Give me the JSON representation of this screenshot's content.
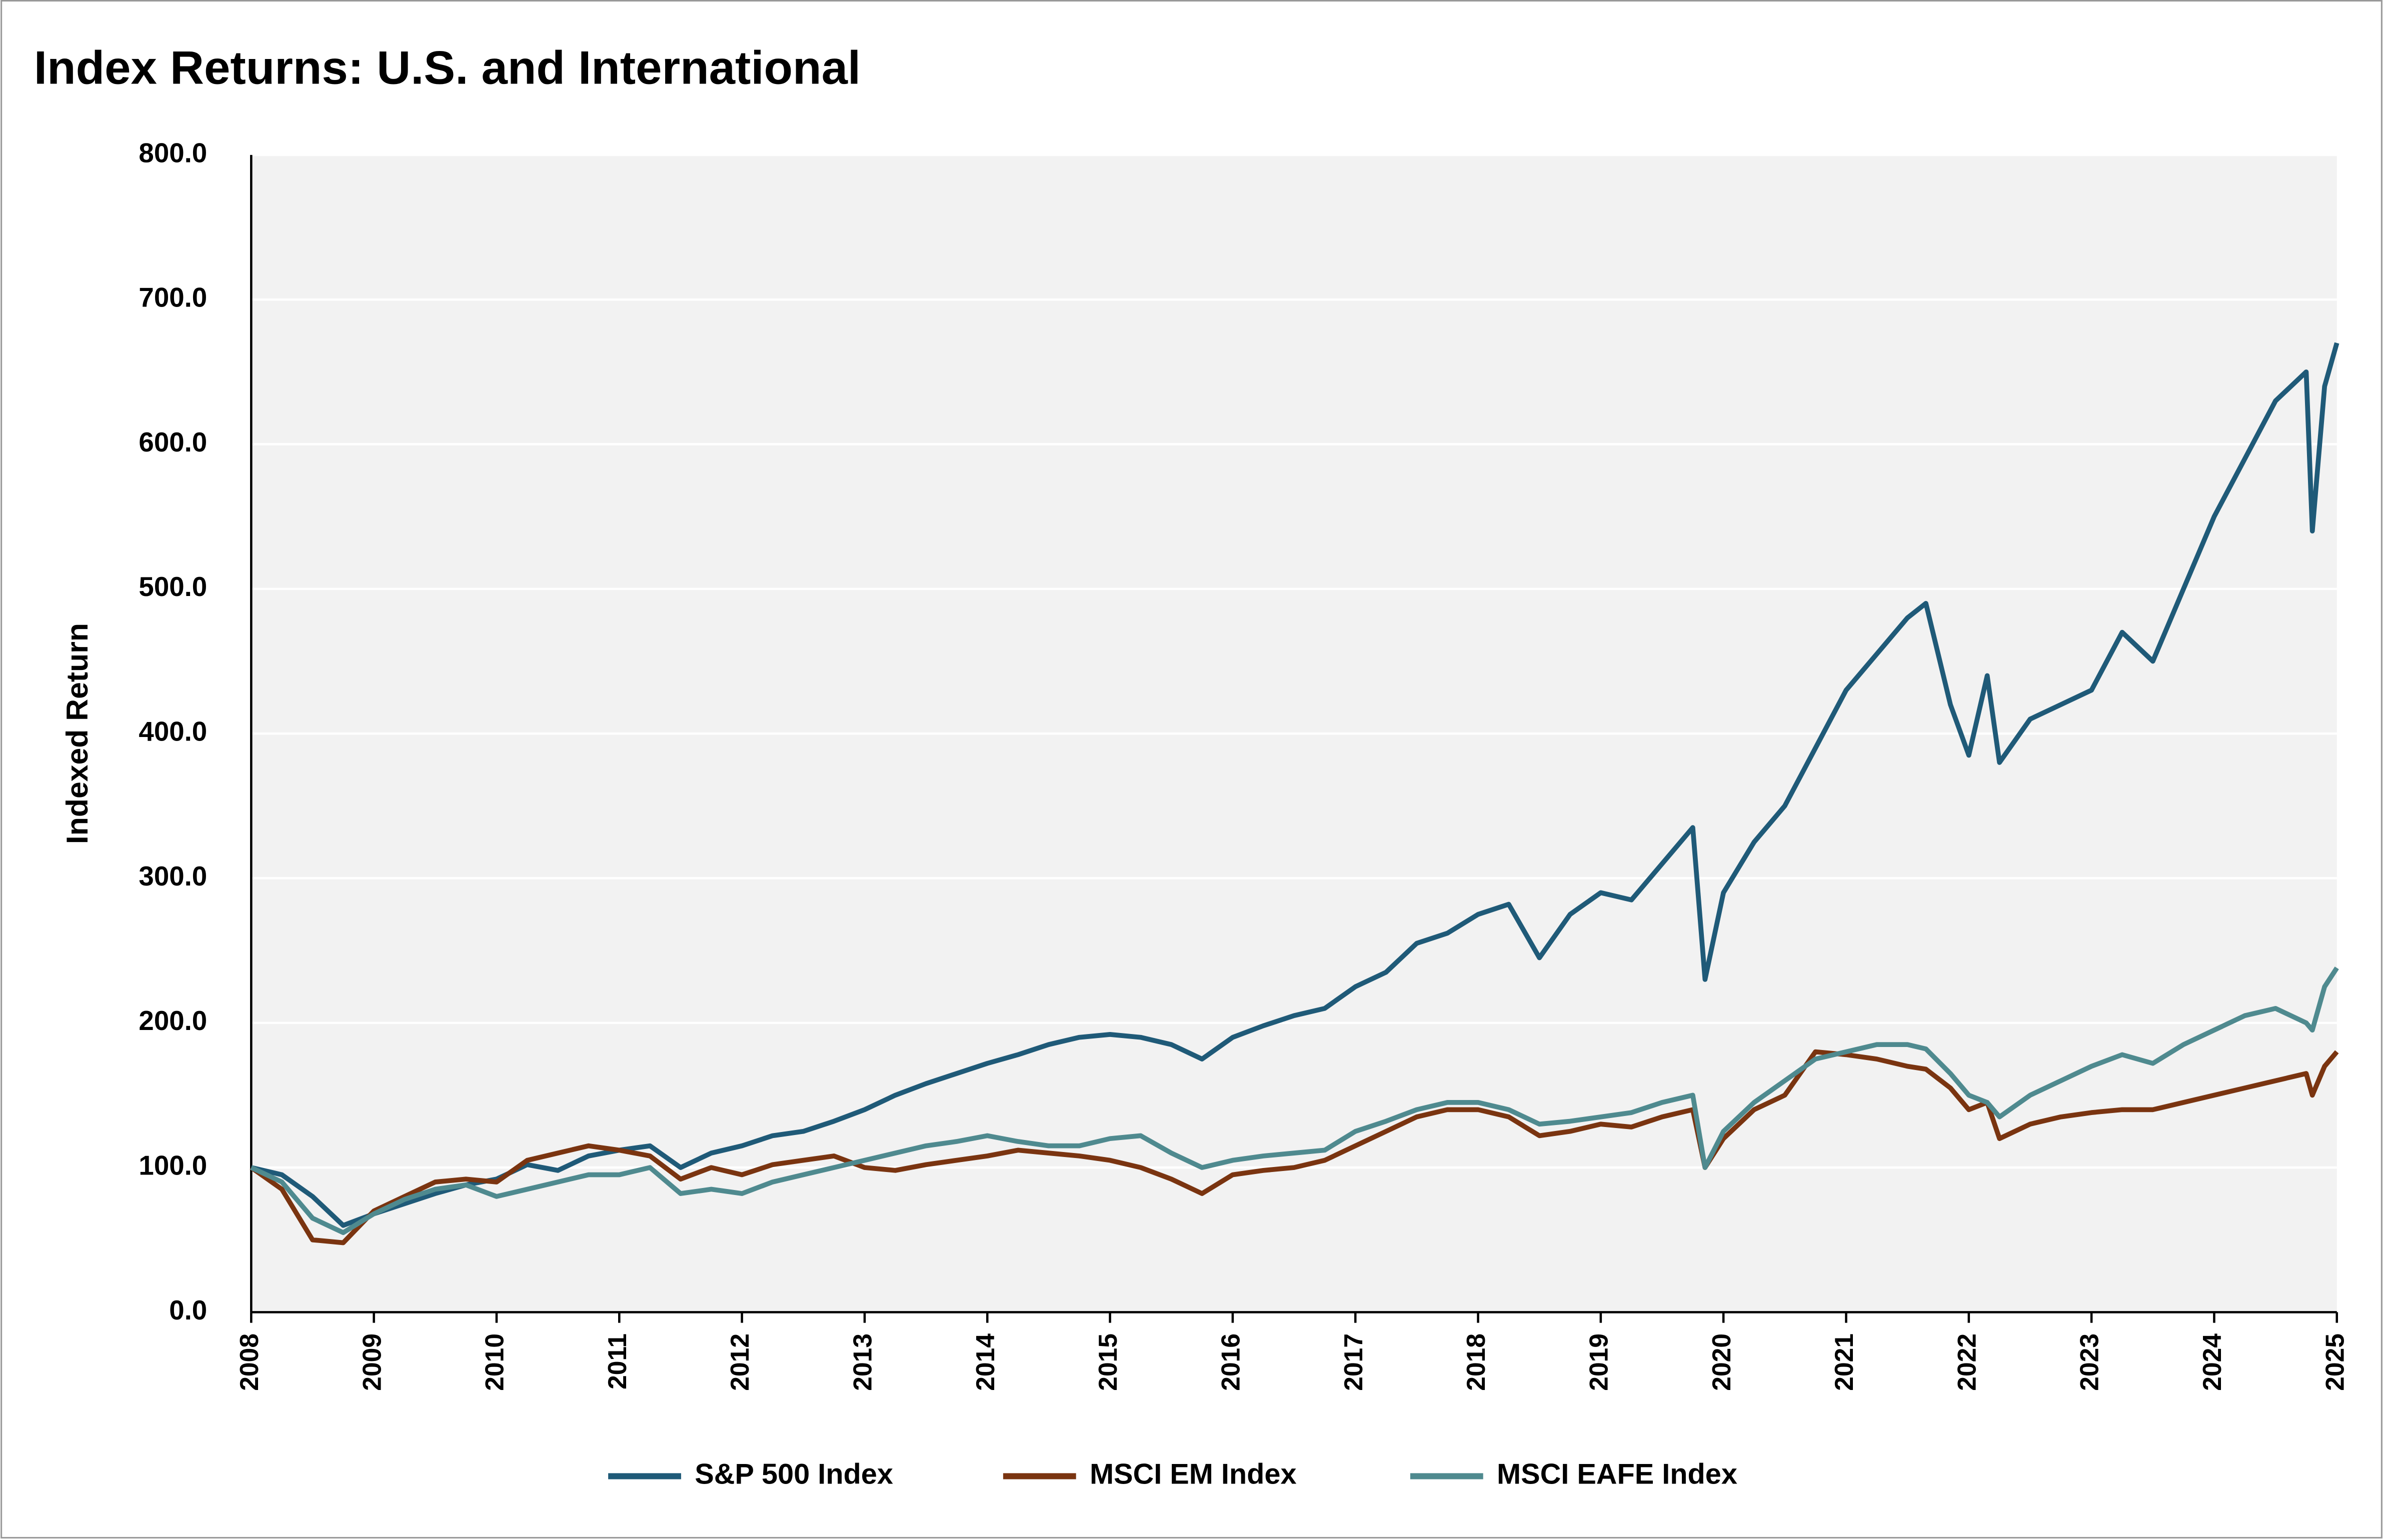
{
  "chart_data": {
    "type": "line",
    "title": "Index Returns: U.S. and International",
    "y_label": "Indexed Return",
    "x": [
      2008,
      2008.25,
      2008.5,
      2008.75,
      2009,
      2009.25,
      2009.5,
      2009.75,
      2010,
      2010.25,
      2010.5,
      2010.75,
      2011,
      2011.25,
      2011.5,
      2011.75,
      2012,
      2012.25,
      2012.5,
      2012.75,
      2013,
      2013.25,
      2013.5,
      2013.75,
      2014,
      2014.25,
      2014.5,
      2014.75,
      2015,
      2015.25,
      2015.5,
      2015.75,
      2016,
      2016.25,
      2016.5,
      2016.75,
      2017,
      2017.25,
      2017.5,
      2017.75,
      2018,
      2018.25,
      2018.5,
      2018.75,
      2019,
      2019.25,
      2019.5,
      2019.75,
      2019.85,
      2020,
      2020.25,
      2020.5,
      2020.75,
      2021,
      2021.25,
      2021.5,
      2021.65,
      2021.85,
      2022,
      2022.15,
      2022.25,
      2022.5,
      2022.75,
      2023,
      2023.25,
      2023.5,
      2023.75,
      2024,
      2024.25,
      2024.5,
      2024.75,
      2024.8,
      2024.9,
      2025
    ],
    "series": [
      {
        "name": "S&P 500 Index",
        "color": "#1f5a78",
        "values": [
          100,
          95,
          80,
          60,
          68,
          75,
          82,
          88,
          92,
          102,
          98,
          108,
          112,
          115,
          100,
          110,
          115,
          122,
          125,
          132,
          140,
          150,
          158,
          165,
          172,
          178,
          185,
          190,
          192,
          190,
          185,
          175,
          190,
          198,
          205,
          210,
          225,
          235,
          255,
          262,
          275,
          282,
          245,
          275,
          290,
          285,
          310,
          335,
          230,
          290,
          325,
          350,
          390,
          430,
          455,
          480,
          490,
          420,
          385,
          440,
          380,
          410,
          420,
          430,
          470,
          450,
          500,
          550,
          590,
          630,
          650,
          540,
          640,
          670
        ]
      },
      {
        "name": "MSCI EM Index",
        "color": "#7a3410",
        "values": [
          100,
          85,
          50,
          48,
          70,
          80,
          90,
          92,
          90,
          105,
          110,
          115,
          112,
          108,
          92,
          100,
          95,
          102,
          105,
          108,
          100,
          98,
          102,
          105,
          108,
          112,
          110,
          108,
          105,
          100,
          92,
          82,
          95,
          98,
          100,
          105,
          115,
          125,
          135,
          140,
          140,
          135,
          122,
          125,
          130,
          128,
          135,
          140,
          100,
          120,
          140,
          150,
          180,
          178,
          175,
          170,
          168,
          155,
          140,
          145,
          120,
          130,
          135,
          138,
          140,
          140,
          145,
          150,
          155,
          160,
          165,
          150,
          170,
          180
        ]
      },
      {
        "name": "MSCI EAFE Index",
        "color": "#4f8a8f",
        "values": [
          100,
          90,
          65,
          55,
          68,
          78,
          85,
          88,
          80,
          85,
          90,
          95,
          95,
          100,
          82,
          85,
          82,
          90,
          95,
          100,
          105,
          110,
          115,
          118,
          122,
          118,
          115,
          115,
          120,
          122,
          110,
          100,
          105,
          108,
          110,
          112,
          125,
          132,
          140,
          145,
          145,
          140,
          130,
          132,
          135,
          138,
          145,
          150,
          100,
          125,
          145,
          160,
          175,
          180,
          185,
          185,
          182,
          165,
          150,
          145,
          135,
          150,
          160,
          170,
          178,
          172,
          185,
          195,
          205,
          210,
          200,
          195,
          225,
          238
        ]
      }
    ],
    "xlim": [
      2008,
      2025
    ],
    "xticks": [
      2008,
      2009,
      2010,
      2011,
      2012,
      2013,
      2014,
      2015,
      2016,
      2017,
      2018,
      2019,
      2020,
      2021,
      2022,
      2023,
      2024,
      2025
    ],
    "ylim": [
      0,
      800
    ],
    "yticks": [
      {
        "value": 0,
        "label": "0.0"
      },
      {
        "value": 100,
        "label": "100.0"
      },
      {
        "value": 200,
        "label": "200.0"
      },
      {
        "value": 300,
        "label": "300.0"
      },
      {
        "value": 400,
        "label": "400.0"
      },
      {
        "value": 500,
        "label": "500.0"
      },
      {
        "value": 600,
        "label": "600.0"
      },
      {
        "value": 700,
        "label": "700.0"
      },
      {
        "value": 800,
        "label": "800.0"
      }
    ],
    "grid": true,
    "legend": "bottom"
  }
}
